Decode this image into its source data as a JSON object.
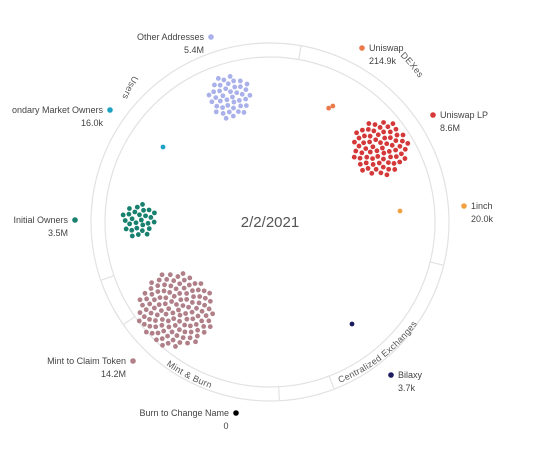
{
  "center_label": "2/2/2021",
  "sections": [
    "Users",
    "DEXes",
    "Centralized Exchanges",
    "Mint & Burn"
  ],
  "nodes": [
    {
      "label": "Other Addresses",
      "value": "5.4M",
      "color": "#a9b0ea"
    },
    {
      "label": "Uniswap",
      "value": "214.9k",
      "color": "#ea7a4c"
    },
    {
      "label": "ondary Market Owners",
      "value": "16.0k",
      "color": "#1ea3c4"
    },
    {
      "label": "Uniswap LP",
      "value": "8.6M",
      "color": "#d43838"
    },
    {
      "label": "1inch",
      "value": "20.0k",
      "color": "#f0a242"
    },
    {
      "label": "Initial Owners",
      "value": "3.5M",
      "color": "#18806e"
    },
    {
      "label": "Mint to Claim Token",
      "value": "14.2M",
      "color": "#b07f88"
    },
    {
      "label": "Bilaxy",
      "value": "3.7k",
      "color": "#1c1c5e"
    },
    {
      "label": "Burn to Change Name",
      "value": "0",
      "color": "#000000"
    }
  ]
}
